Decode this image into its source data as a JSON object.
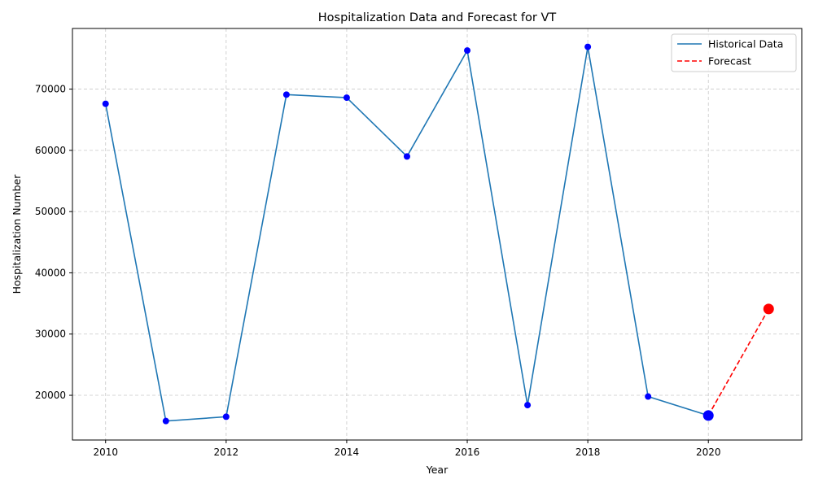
{
  "chart_data": {
    "type": "line",
    "title": "Hospitalization Data and Forecast for VT",
    "xlabel": "Year",
    "ylabel": "Hospitalization Number",
    "xlim": [
      2009.45,
      2021.55
    ],
    "ylim": [
      12700,
      79900
    ],
    "xticks": [
      2010,
      2012,
      2014,
      2016,
      2018,
      2020
    ],
    "yticks": [
      20000,
      30000,
      40000,
      50000,
      60000,
      70000
    ],
    "grid": true,
    "legend_position": "top-right",
    "series": [
      {
        "name": "Historical Data",
        "color": "#1f77b4",
        "line_style": "solid",
        "x": [
          2010,
          2011,
          2012,
          2013,
          2014,
          2015,
          2016,
          2017,
          2018,
          2019,
          2020
        ],
        "y": [
          67600,
          15800,
          16500,
          69100,
          68600,
          59000,
          76300,
          18400,
          76900,
          19800,
          16700
        ]
      },
      {
        "name": "Forecast",
        "color": "#ff0000",
        "line_style": "dashed",
        "x": [
          2020,
          2021
        ],
        "y": [
          16700,
          34100
        ]
      }
    ],
    "markers": {
      "point_color": "#0000ff",
      "highlight_last_point_color": "#0000ff",
      "forecast_point_color": "#ff0000"
    }
  }
}
